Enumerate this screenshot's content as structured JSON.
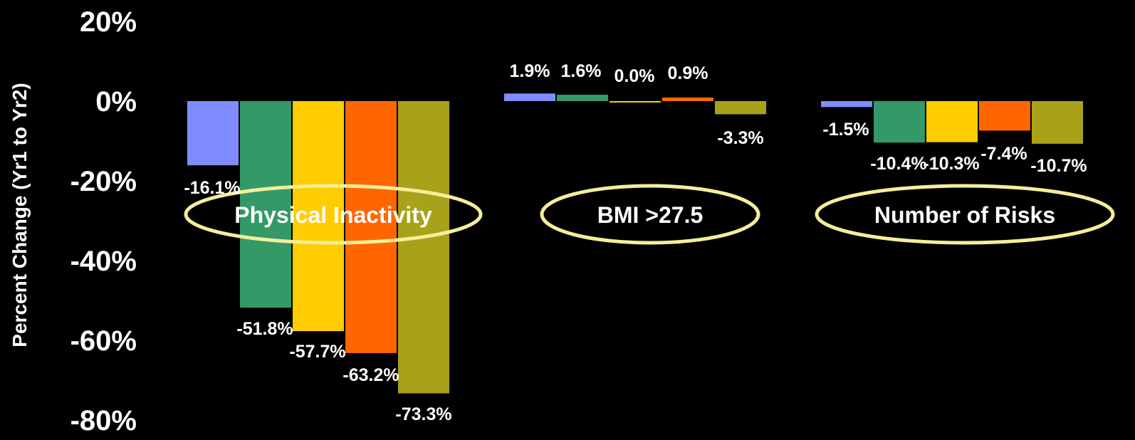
{
  "colors": {
    "background": "#000000",
    "text": "#ffffff",
    "ellipse": "#f5ee9a",
    "bar_colors": [
      "#7f8cff",
      "#339966",
      "#ffcc00",
      "#ff6600",
      "#a8a21a"
    ]
  },
  "chart_data": {
    "type": "bar",
    "ylabel": "Percent Change (Yr1 to Yr2)",
    "ylim": [
      -80,
      20
    ],
    "yticks": [
      20,
      0,
      -20,
      -40,
      -60,
      -80
    ],
    "ytick_labels": [
      "20%",
      "0%",
      "-20%",
      "-40%",
      "-60%",
      "-80%"
    ],
    "grid": false,
    "legend": "none",
    "categories": [
      "Physical Inactivity",
      "BMI >27.5",
      "Number of Risks"
    ],
    "groups": [
      {
        "name": "Physical Inactivity",
        "values": [
          -16.1,
          -51.8,
          -57.7,
          -63.2,
          -73.3
        ],
        "labels": [
          "-16.1%",
          "-51.8%",
          "-57.7%",
          "-63.2%",
          "-73.3%"
        ]
      },
      {
        "name": "BMI >27.5",
        "values": [
          1.9,
          1.6,
          0.0,
          0.9,
          -3.3
        ],
        "labels": [
          "1.9%",
          "1.6%",
          "0.0%",
          "0.9%",
          "-3.3%"
        ]
      },
      {
        "name": "Number of Risks",
        "values": [
          -1.5,
          -10.4,
          -10.3,
          -7.4,
          -10.7
        ],
        "labels": [
          "-1.5%",
          "-10.4%",
          "-10.3%",
          "-7.4%",
          "-10.7%"
        ]
      }
    ]
  }
}
